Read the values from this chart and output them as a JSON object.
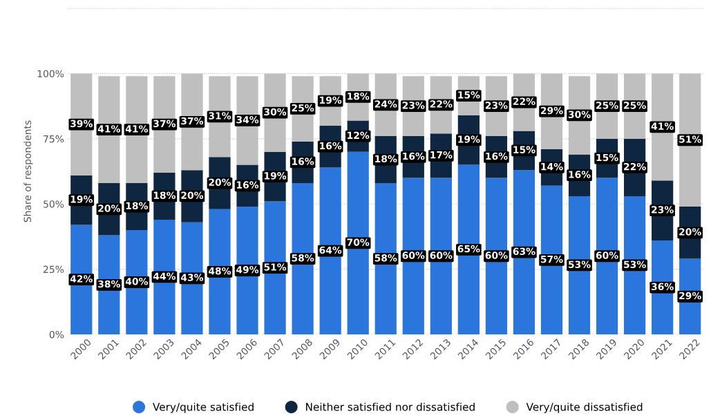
{
  "chart_data": {
    "type": "bar",
    "stacked": true,
    "ylabel": "Share of respondents",
    "categories": [
      "2000",
      "2001",
      "2002",
      "2003",
      "2004",
      "2005",
      "2006",
      "2007",
      "2008",
      "2009",
      "2010",
      "2011",
      "2012",
      "2013",
      "2014",
      "2015",
      "2016",
      "2017",
      "2018",
      "2019",
      "2020",
      "2021",
      "2022"
    ],
    "series": [
      {
        "name": "Very/quite satisfied",
        "color": "#2a76dd",
        "values": [
          42,
          38,
          40,
          44,
          43,
          48,
          49,
          51,
          58,
          64,
          70,
          58,
          60,
          60,
          65,
          60,
          63,
          57,
          53,
          60,
          53,
          36,
          29
        ],
        "value_labels": [
          "42%",
          "38%",
          "40%",
          "44%",
          "43%",
          "48%",
          "49%",
          "51%",
          "58%",
          "64%",
          "70%",
          "58%",
          "60%",
          "60%",
          "65%",
          "60%",
          "63%",
          "57%",
          "53%",
          "60%",
          "53%",
          "36%",
          "29%"
        ]
      },
      {
        "name": "Neither satisfied nor dissatisfied",
        "color": "#0f2640",
        "values": [
          19,
          20,
          18,
          18,
          20,
          20,
          16,
          19,
          16,
          16,
          12,
          18,
          16,
          17,
          19,
          16,
          15,
          14,
          16,
          15,
          22,
          23,
          20
        ],
        "value_labels": [
          "19%",
          "20%",
          "18%",
          "18%",
          "20%",
          "20%",
          "16%",
          "19%",
          "16%",
          "16%",
          "12%",
          "18%",
          "16%",
          "17%",
          "19%",
          "16%",
          "15%",
          "14%",
          "16%",
          "15%",
          "22%",
          "23%",
          "20%"
        ]
      },
      {
        "name": "Very/quite dissatisfied",
        "color": "#bfbfbf",
        "values": [
          39,
          41,
          41,
          37,
          37,
          31,
          34,
          30,
          25,
          19,
          18,
          24,
          23,
          22,
          15,
          23,
          22,
          29,
          30,
          25,
          25,
          41,
          51
        ],
        "value_labels": [
          "39%",
          "41%",
          "41%",
          "37%",
          "37%",
          "31%",
          "34%",
          "30%",
          "25%",
          "19%",
          "18%",
          "24%",
          "23%",
          "22%",
          "15%",
          "23%",
          "22%",
          "29%",
          "30%",
          "25%",
          "25%",
          "41%",
          "51%"
        ]
      }
    ],
    "ylim": [
      0,
      125
    ],
    "yticks": [
      {
        "value": 0,
        "label": "0%"
      },
      {
        "value": 25,
        "label": "25%"
      },
      {
        "value": 50,
        "label": "50%"
      },
      {
        "value": 75,
        "label": "75%"
      },
      {
        "value": 100,
        "label": "100%"
      },
      {
        "value": 125,
        "label": null
      }
    ],
    "grid": "y",
    "legend": "bottom"
  }
}
